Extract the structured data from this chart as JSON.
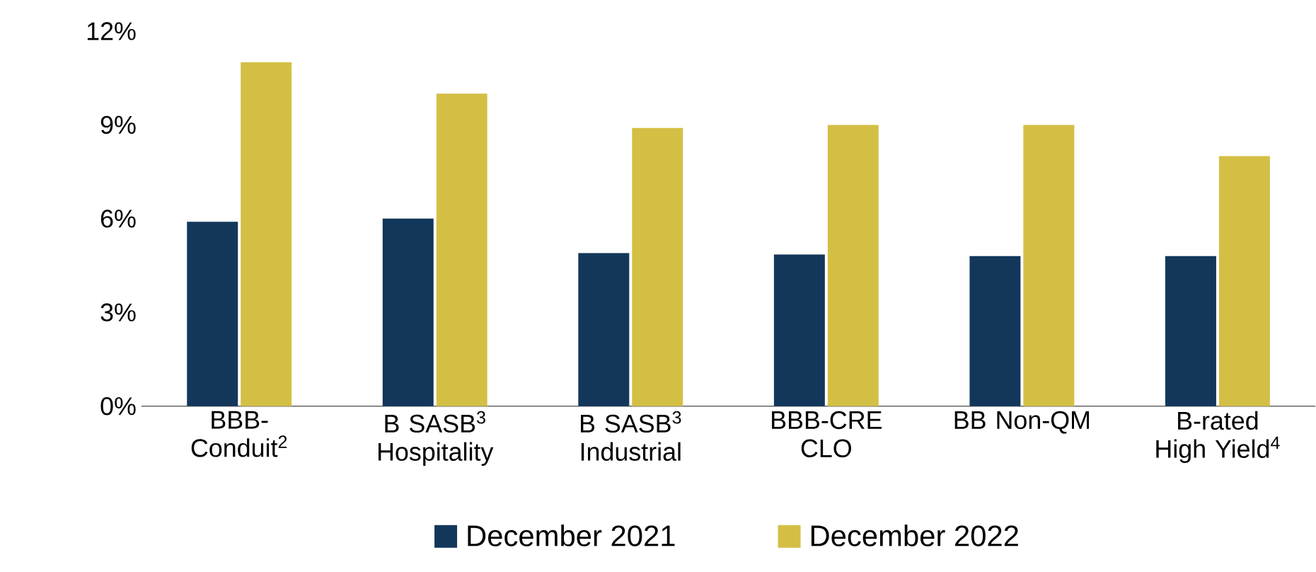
{
  "chart_data": {
    "type": "bar",
    "categories": [
      "BBB-Conduit$^{2}$",
      "B SASB$^{3}$ Hospitality",
      "B SASB$^{3}$ Industrial",
      "BBB-CRE CLO",
      "BB Non-QM",
      "B-rated High Yield$^{4}$"
    ],
    "series": [
      {
        "name": "December 2021",
        "color": "#12375a",
        "values": [
          5.9,
          6.0,
          4.9,
          4.85,
          4.8,
          4.8
        ]
      },
      {
        "name": "December 2022",
        "color": "#d4bf45",
        "values": [
          11.0,
          10.0,
          8.9,
          9.0,
          9.0,
          8.0
        ]
      }
    ],
    "ylim": [
      0,
      12
    ],
    "yticks": [
      {
        "value": 0,
        "label": "0%"
      },
      {
        "value": 3,
        "label": "3%"
      },
      {
        "value": 6,
        "label": "6%"
      },
      {
        "value": 9,
        "label": "9%"
      },
      {
        "value": 12,
        "label": "12%"
      }
    ],
    "legend": "bottom"
  }
}
